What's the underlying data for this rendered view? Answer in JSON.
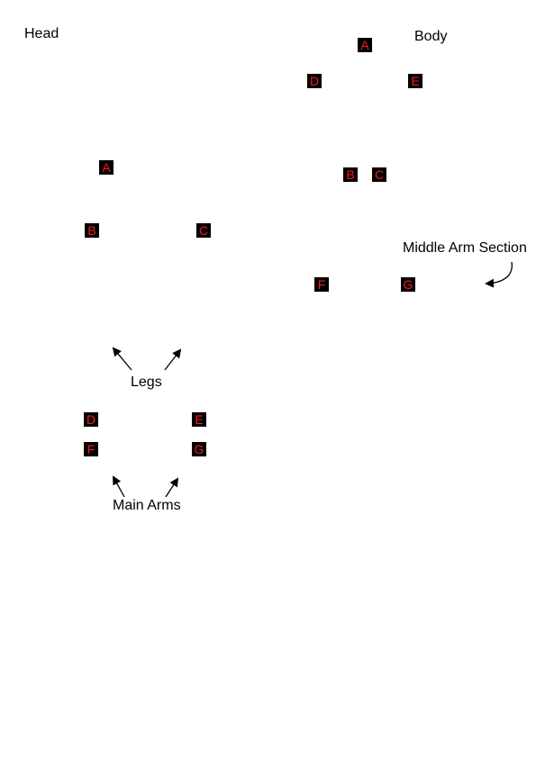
{
  "labels": {
    "head": "Head",
    "body": "Body",
    "middle_arm_section": "Middle Arm Section",
    "legs": "Legs",
    "main_arms": "Main Arms"
  },
  "head_markers": {
    "a": "A",
    "b": "B",
    "c": "C",
    "d": "D",
    "e": "E",
    "f": "F",
    "g": "G"
  },
  "body_markers": {
    "a": "A",
    "b": "B",
    "c": "C",
    "d": "D",
    "e": "E",
    "f": "F",
    "g": "G"
  },
  "colors": {
    "marker_background": "#000000",
    "marker_text": "#ff1a1a",
    "label_text": "#000000",
    "background": "#ffffff"
  }
}
